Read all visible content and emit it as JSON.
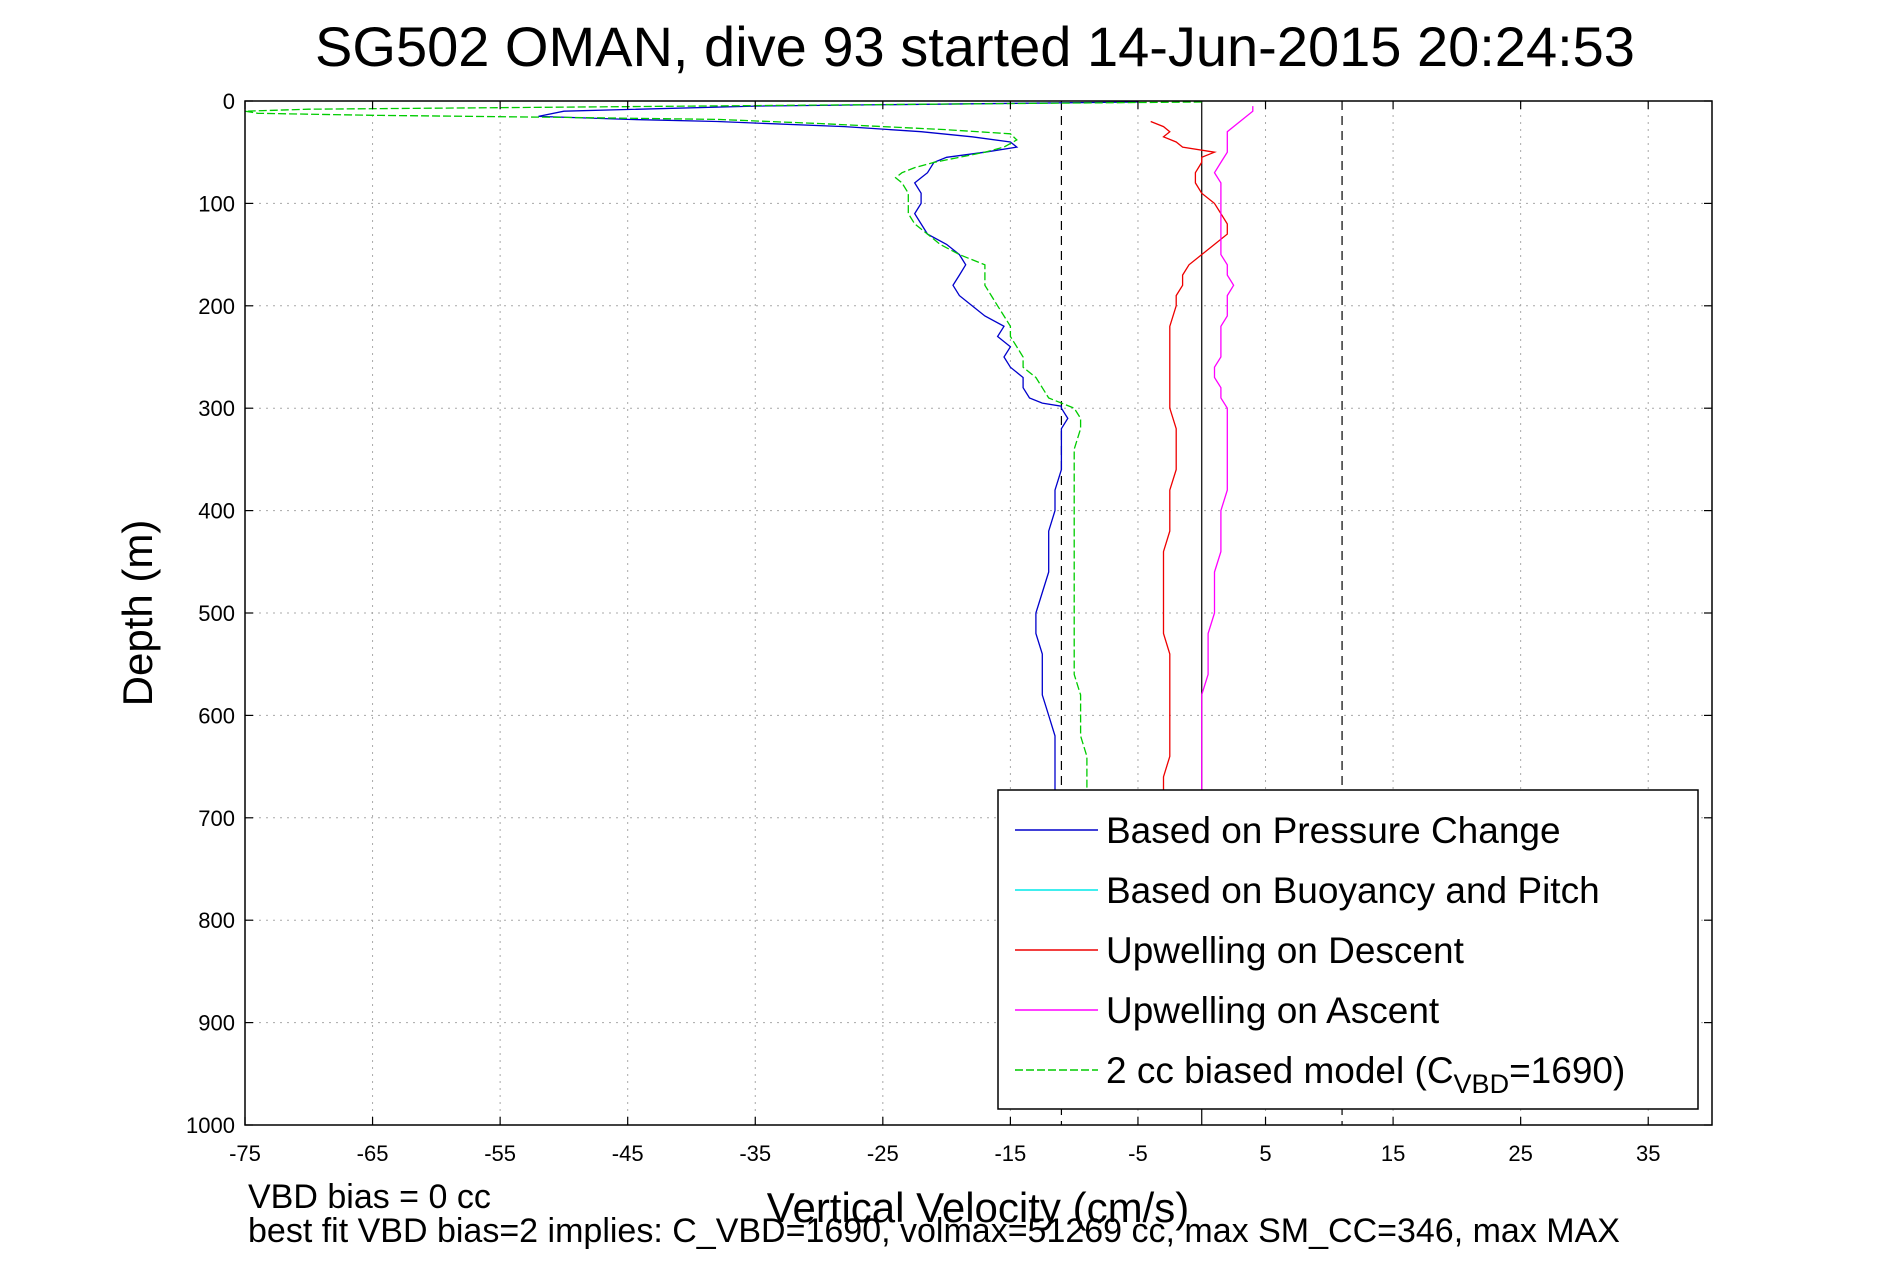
{
  "chart_data": {
    "type": "line",
    "title": "SG502 OMAN, dive 93 started 14-Jun-2015 20:24:53",
    "xlabel": "Vertical Velocity (cm/s)",
    "ylabel": "Depth (m)",
    "xlim": [
      -75,
      40
    ],
    "ylim": [
      0,
      1000
    ],
    "y_reversed": true,
    "grid": true,
    "xticks": [
      -75,
      -65,
      -55,
      -45,
      -35,
      -25,
      -15,
      -5,
      5,
      15,
      25,
      35
    ],
    "yticks": [
      0,
      100,
      200,
      300,
      400,
      500,
      600,
      700,
      800,
      900,
      1000
    ],
    "legend_position": "bottom-right",
    "reference_lines": {
      "solid_x": 0,
      "dashed_x": [
        -11,
        11
      ]
    },
    "series": [
      {
        "name": "Based on Pressure Change",
        "color": "#0000cc",
        "style": "solid",
        "points": [
          [
            -5,
            1
          ],
          [
            -35,
            5
          ],
          [
            -50,
            10
          ],
          [
            -52,
            15
          ],
          [
            -45,
            18
          ],
          [
            -38,
            20
          ],
          [
            -28,
            25
          ],
          [
            -22,
            30
          ],
          [
            -18,
            35
          ],
          [
            -15,
            40
          ],
          [
            -14.5,
            45
          ],
          [
            -17,
            50
          ],
          [
            -20,
            55
          ],
          [
            -21,
            60
          ],
          [
            -21.5,
            70
          ],
          [
            -22,
            75
          ],
          [
            -22.5,
            80
          ],
          [
            -22,
            90
          ],
          [
            -22,
            100
          ],
          [
            -22.5,
            110
          ],
          [
            -22,
            120
          ],
          [
            -21.5,
            130
          ],
          [
            -20,
            140
          ],
          [
            -19,
            150
          ],
          [
            -18.5,
            160
          ],
          [
            -19,
            170
          ],
          [
            -19.5,
            180
          ],
          [
            -19,
            190
          ],
          [
            -18,
            200
          ],
          [
            -17,
            210
          ],
          [
            -15.5,
            220
          ],
          [
            -16,
            230
          ],
          [
            -15,
            240
          ],
          [
            -15.5,
            250
          ],
          [
            -15,
            260
          ],
          [
            -14,
            270
          ],
          [
            -14,
            280
          ],
          [
            -13.5,
            290
          ],
          [
            -12.5,
            295
          ],
          [
            -11,
            298
          ],
          [
            -11,
            300
          ],
          [
            -10.5,
            310
          ],
          [
            -11,
            320
          ],
          [
            -11,
            340
          ],
          [
            -11,
            360
          ],
          [
            -11.5,
            380
          ],
          [
            -11.5,
            400
          ],
          [
            -12,
            420
          ],
          [
            -12,
            440
          ],
          [
            -12,
            460
          ],
          [
            -12.5,
            480
          ],
          [
            -13,
            500
          ],
          [
            -13,
            520
          ],
          [
            -12.5,
            540
          ],
          [
            -12.5,
            560
          ],
          [
            -12.5,
            580
          ],
          [
            -12,
            600
          ],
          [
            -11.5,
            620
          ],
          [
            -11.5,
            640
          ],
          [
            -11.5,
            660
          ],
          [
            -11.5,
            680
          ],
          [
            -11.5,
            690
          ]
        ]
      },
      {
        "name": "Based on Buoyancy and Pitch",
        "color": "#00e8e8",
        "style": "solid",
        "points": []
      },
      {
        "name": "Upwelling on Descent",
        "color": "#ee0000",
        "style": "solid",
        "points": [
          [
            -4,
            20
          ],
          [
            -3,
            25
          ],
          [
            -2.5,
            30
          ],
          [
            -3,
            35
          ],
          [
            -2,
            40
          ],
          [
            -1.5,
            45
          ],
          [
            1,
            50
          ],
          [
            0,
            55
          ],
          [
            0,
            60
          ],
          [
            -0.5,
            70
          ],
          [
            -0.5,
            80
          ],
          [
            0,
            90
          ],
          [
            1,
            100
          ],
          [
            1.5,
            110
          ],
          [
            2,
            120
          ],
          [
            2,
            130
          ],
          [
            1,
            140
          ],
          [
            0,
            150
          ],
          [
            -1,
            160
          ],
          [
            -1.5,
            170
          ],
          [
            -1.5,
            180
          ],
          [
            -2,
            190
          ],
          [
            -2,
            200
          ],
          [
            -2.5,
            220
          ],
          [
            -2.5,
            240
          ],
          [
            -2.5,
            260
          ],
          [
            -2.5,
            280
          ],
          [
            -2.5,
            300
          ],
          [
            -2,
            320
          ],
          [
            -2,
            340
          ],
          [
            -2,
            360
          ],
          [
            -2.5,
            380
          ],
          [
            -2.5,
            400
          ],
          [
            -2.5,
            420
          ],
          [
            -3,
            440
          ],
          [
            -3,
            460
          ],
          [
            -3,
            480
          ],
          [
            -3,
            500
          ],
          [
            -3,
            520
          ],
          [
            -2.5,
            540
          ],
          [
            -2.5,
            560
          ],
          [
            -2.5,
            580
          ],
          [
            -2.5,
            600
          ],
          [
            -2.5,
            620
          ],
          [
            -2.5,
            640
          ],
          [
            -3,
            660
          ],
          [
            -3,
            680
          ],
          [
            -3,
            690
          ]
        ]
      },
      {
        "name": "Upwelling on Ascent",
        "color": "#ff00ff",
        "style": "solid",
        "points": [
          [
            4,
            5
          ],
          [
            4,
            10
          ],
          [
            3,
            20
          ],
          [
            2,
            30
          ],
          [
            2,
            40
          ],
          [
            2,
            50
          ],
          [
            1.5,
            60
          ],
          [
            1,
            70
          ],
          [
            1.5,
            80
          ],
          [
            1.5,
            90
          ],
          [
            1.5,
            100
          ],
          [
            1.5,
            110
          ],
          [
            1.5,
            120
          ],
          [
            1.5,
            130
          ],
          [
            1.5,
            140
          ],
          [
            1.5,
            150
          ],
          [
            2,
            160
          ],
          [
            2,
            170
          ],
          [
            2.5,
            180
          ],
          [
            2,
            190
          ],
          [
            2,
            200
          ],
          [
            2,
            210
          ],
          [
            1.5,
            220
          ],
          [
            1.5,
            230
          ],
          [
            1.5,
            240
          ],
          [
            1.5,
            250
          ],
          [
            1,
            260
          ],
          [
            1,
            270
          ],
          [
            1.5,
            280
          ],
          [
            1.5,
            290
          ],
          [
            2,
            300
          ],
          [
            2,
            320
          ],
          [
            2,
            340
          ],
          [
            2,
            360
          ],
          [
            2,
            380
          ],
          [
            1.5,
            400
          ],
          [
            1.5,
            420
          ],
          [
            1.5,
            440
          ],
          [
            1,
            460
          ],
          [
            1,
            480
          ],
          [
            1,
            500
          ],
          [
            0.5,
            520
          ],
          [
            0.5,
            540
          ],
          [
            0.5,
            560
          ],
          [
            0,
            580
          ],
          [
            0,
            600
          ],
          [
            0,
            620
          ],
          [
            0,
            640
          ],
          [
            0,
            660
          ],
          [
            0,
            680
          ],
          [
            0,
            690
          ]
        ]
      },
      {
        "name": "2 cc biased model (C",
        "name_sub": "VBD",
        "name_tail": "=1690)",
        "color": "#00cc00",
        "style": "dashed",
        "points": [
          [
            0,
            1
          ],
          [
            -40,
            5
          ],
          [
            -70,
            8
          ],
          [
            -75,
            10
          ],
          [
            -74,
            12
          ],
          [
            -65,
            14
          ],
          [
            -50,
            16
          ],
          [
            -38,
            18
          ],
          [
            -30,
            22
          ],
          [
            -20,
            28
          ],
          [
            -15,
            32
          ],
          [
            -14.5,
            38
          ],
          [
            -15.5,
            45
          ],
          [
            -17,
            50
          ],
          [
            -19,
            55
          ],
          [
            -21,
            60
          ],
          [
            -22.5,
            65
          ],
          [
            -23.5,
            70
          ],
          [
            -24,
            75
          ],
          [
            -23.5,
            80
          ],
          [
            -23,
            90
          ],
          [
            -23,
            100
          ],
          [
            -23,
            110
          ],
          [
            -22.5,
            120
          ],
          [
            -21.5,
            130
          ],
          [
            -20.5,
            140
          ],
          [
            -19,
            150
          ],
          [
            -17,
            160
          ],
          [
            -17,
            170
          ],
          [
            -17,
            180
          ],
          [
            -16.5,
            190
          ],
          [
            -16,
            200
          ],
          [
            -15.5,
            210
          ],
          [
            -15,
            220
          ],
          [
            -15,
            230
          ],
          [
            -14.5,
            240
          ],
          [
            -14,
            250
          ],
          [
            -14,
            260
          ],
          [
            -13,
            270
          ],
          [
            -12.5,
            280
          ],
          [
            -12,
            290
          ],
          [
            -10,
            300
          ],
          [
            -9.5,
            310
          ],
          [
            -9.5,
            320
          ],
          [
            -10,
            340
          ],
          [
            -10,
            360
          ],
          [
            -10,
            380
          ],
          [
            -10,
            400
          ],
          [
            -10,
            420
          ],
          [
            -10,
            440
          ],
          [
            -10,
            460
          ],
          [
            -10,
            480
          ],
          [
            -10,
            500
          ],
          [
            -10,
            520
          ],
          [
            -10,
            540
          ],
          [
            -10,
            560
          ],
          [
            -9.5,
            580
          ],
          [
            -9.5,
            600
          ],
          [
            -9.5,
            620
          ],
          [
            -9,
            640
          ],
          [
            -9,
            660
          ],
          [
            -9,
            680
          ],
          [
            -9,
            690
          ]
        ]
      }
    ],
    "notes": [
      "VBD bias = 0 cc",
      "best fit VBD bias=2 implies: C_VBD=1690, volmax=51269 cc, max SM_CC=346, max MAX"
    ]
  }
}
